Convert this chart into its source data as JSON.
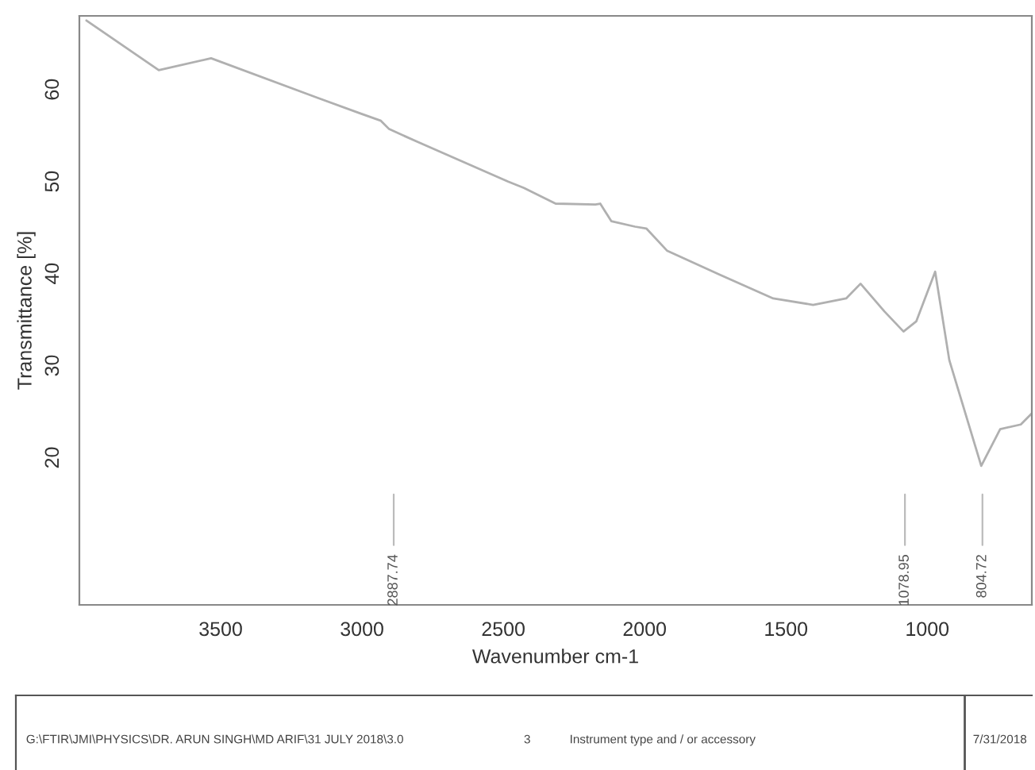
{
  "chart_data": {
    "type": "line",
    "xlabel": "Wavenumber cm-1",
    "ylabel": "Transmittance [%]",
    "xlim": [
      4000,
      630
    ],
    "xticks": [
      3500,
      3000,
      2500,
      2000,
      1500,
      1000
    ],
    "ylim": [
      4,
      68
    ],
    "yticks": [
      20,
      30,
      40,
      50,
      60
    ],
    "grid": false,
    "legend": false,
    "x": [
      3975,
      3719,
      3534,
      3157,
      3006,
      2933,
      2904,
      2803,
      2483,
      2427,
      2315,
      2174,
      2157,
      2118,
      2034,
      1994,
      1921,
      1736,
      1545,
      1404,
      1287,
      1236,
      1152,
      1084,
      1039,
      972,
      922,
      809,
      742,
      669,
      630
    ],
    "series": [
      {
        "color": "#b0b0b0",
        "values": [
          67.5,
          62.1,
          63.4,
          59.1,
          57.4,
          56.6,
          55.7,
          54.3,
          50.0,
          49.3,
          47.6,
          47.5,
          47.6,
          45.7,
          45.1,
          44.9,
          42.5,
          39.9,
          37.3,
          36.6,
          37.3,
          38.9,
          35.9,
          33.7,
          34.8,
          40.2,
          30.6,
          19.1,
          23.1,
          23.6,
          24.8
        ]
      }
    ],
    "ref_lines": [
      {
        "axis": "x",
        "value": 2887.74,
        "label": "2887.74"
      },
      {
        "axis": "x",
        "value": 1078.95,
        "label": "1078.95"
      },
      {
        "axis": "x",
        "value": 804.72,
        "label": "804.72"
      }
    ],
    "annotations": [
      "G:\\FTIR\\JMI\\PHYSICS\\DR. ARUN SINGH\\MD ARIF\\31 JULY 2018\\3.0",
      "3",
      "Instrument type and / or accessory",
      "7/31/2018"
    ]
  }
}
